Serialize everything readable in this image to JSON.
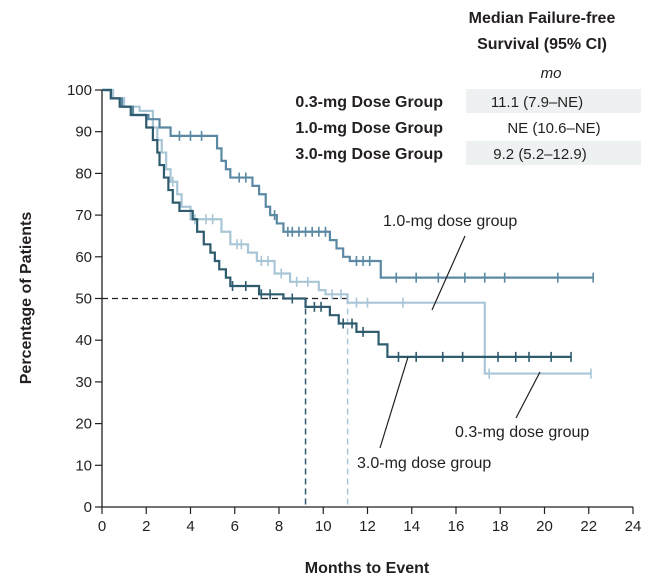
{
  "chart_data": {
    "type": "line",
    "xlabel": "Months to Event",
    "ylabel": "Percentage of Patients",
    "xlim": [
      0,
      24
    ],
    "ylim": [
      0,
      100
    ],
    "xticks": [
      "0",
      "2",
      "4",
      "6",
      "8",
      "10",
      "12",
      "14",
      "16",
      "18",
      "20",
      "22",
      "24"
    ],
    "yticks": [
      "0",
      "10",
      "20",
      "30",
      "40",
      "50",
      "60",
      "70",
      "80",
      "90",
      "100"
    ],
    "grid": false,
    "summary_table": {
      "header_line1": "Median Failure-free",
      "header_line2": "Survival (95% CI)",
      "unit": "mo",
      "rows": [
        {
          "group": "0.3-mg Dose Group",
          "value": "11.1 (7.9–NE)"
        },
        {
          "group": "1.0-mg Dose Group",
          "value": "NE (10.6–NE)"
        },
        {
          "group": "3.0-mg Dose Group",
          "value": "9.2 (5.2–12.9)"
        }
      ]
    },
    "median_reference": {
      "y": 50,
      "medians_x": [
        9.2,
        11.1
      ]
    },
    "series": [
      {
        "name": "1.0-mg dose group",
        "color": "#5b89a3",
        "steps": [
          [
            0,
            100
          ],
          [
            0.4,
            98
          ],
          [
            0.9,
            96
          ],
          [
            1.4,
            94
          ],
          [
            2.1,
            93
          ],
          [
            2.6,
            91
          ],
          [
            3.1,
            89
          ],
          [
            5.2,
            86
          ],
          [
            5.4,
            83
          ],
          [
            5.6,
            81
          ],
          [
            5.8,
            79
          ],
          [
            6.8,
            77
          ],
          [
            7.1,
            75
          ],
          [
            7.4,
            72
          ],
          [
            7.6,
            70
          ],
          [
            7.9,
            68
          ],
          [
            8.2,
            66
          ],
          [
            10.3,
            64
          ],
          [
            10.6,
            62
          ],
          [
            10.9,
            60
          ],
          [
            11.2,
            59
          ],
          [
            12.6,
            55
          ],
          [
            22.2,
            55
          ]
        ],
        "censor_x": [
          3.5,
          4.0,
          4.5,
          6.2,
          6.5,
          7.8,
          8.4,
          8.6,
          8.9,
          9.2,
          9.5,
          9.8,
          10.1,
          11.5,
          11.8,
          12.1,
          13.3,
          14.2,
          15.2,
          16.4,
          17.3,
          18.2,
          20.6,
          22.2
        ]
      },
      {
        "name": "0.3-mg dose group",
        "color": "#a9c6d6",
        "steps": [
          [
            0,
            100
          ],
          [
            0.5,
            98
          ],
          [
            1.0,
            96
          ],
          [
            1.7,
            95
          ],
          [
            2.3,
            91
          ],
          [
            2.5,
            88
          ],
          [
            2.7,
            85
          ],
          [
            2.9,
            81
          ],
          [
            3.1,
            78
          ],
          [
            3.4,
            75
          ],
          [
            3.6,
            72
          ],
          [
            4.0,
            69
          ],
          [
            5.4,
            66
          ],
          [
            5.8,
            63
          ],
          [
            6.6,
            61
          ],
          [
            7.0,
            59
          ],
          [
            7.8,
            56
          ],
          [
            8.5,
            54
          ],
          [
            9.8,
            52
          ],
          [
            10.1,
            51
          ],
          [
            11.1,
            49
          ],
          [
            17.3,
            49
          ],
          [
            17.3,
            32
          ],
          [
            22.1,
            32
          ]
        ],
        "censor_x": [
          3.2,
          4.2,
          4.7,
          5.0,
          6.1,
          6.3,
          7.2,
          7.5,
          8.1,
          8.8,
          9.3,
          10.4,
          10.8,
          11.5,
          12.0,
          13.6,
          17.5,
          22.1
        ]
      },
      {
        "name": "3.0-mg dose group",
        "color": "#2e5b6e",
        "steps": [
          [
            0,
            100
          ],
          [
            0.4,
            98
          ],
          [
            0.8,
            96
          ],
          [
            1.3,
            94
          ],
          [
            2.0,
            91
          ],
          [
            2.3,
            88
          ],
          [
            2.5,
            85
          ],
          [
            2.6,
            82
          ],
          [
            2.8,
            79
          ],
          [
            3.0,
            76
          ],
          [
            3.2,
            73
          ],
          [
            3.5,
            71
          ],
          [
            4.1,
            69
          ],
          [
            4.3,
            66
          ],
          [
            4.6,
            63
          ],
          [
            4.9,
            61
          ],
          [
            5.1,
            59
          ],
          [
            5.3,
            57
          ],
          [
            5.6,
            55
          ],
          [
            5.8,
            53
          ],
          [
            7.1,
            51
          ],
          [
            8.2,
            50
          ],
          [
            9.2,
            48
          ],
          [
            10.3,
            46
          ],
          [
            10.7,
            44
          ],
          [
            11.5,
            42
          ],
          [
            12.5,
            39
          ],
          [
            12.9,
            36
          ],
          [
            21.2,
            36
          ]
        ],
        "censor_x": [
          5.9,
          6.5,
          7.2,
          7.6,
          8.6,
          9.6,
          9.9,
          10.9,
          11.3,
          11.8,
          13.4,
          14.2,
          15.4,
          16.3,
          17.9,
          18.7,
          19.3,
          20.3,
          21.2
        ]
      }
    ],
    "annotations": [
      {
        "text": "1.0-mg dose group",
        "series": "1.0-mg dose group"
      },
      {
        "text": "0.3-mg dose group",
        "series": "0.3-mg dose group"
      },
      {
        "text": "3.0-mg dose group",
        "series": "3.0-mg dose group"
      }
    ]
  }
}
